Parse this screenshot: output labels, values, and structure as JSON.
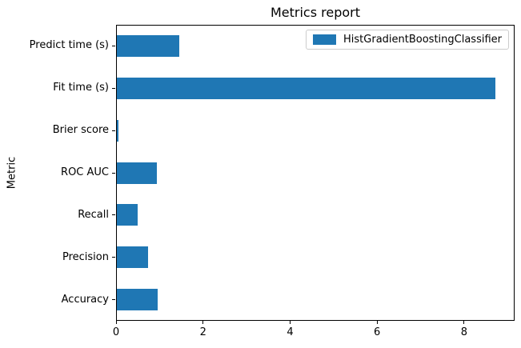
{
  "chart_data": {
    "type": "bar",
    "orientation": "horizontal",
    "title": "Metrics report",
    "xlabel": "",
    "ylabel": "Metric",
    "categories_top_to_bottom": [
      "Predict time (s)",
      "Fit time (s)",
      "Brier score",
      "ROC AUC",
      "Recall",
      "Precision",
      "Accuracy"
    ],
    "series": [
      {
        "name": "HistGradientBoostingClassifier",
        "color": "#1f77b4",
        "values_top_to_bottom": [
          1.43,
          8.7,
          0.04,
          0.92,
          0.48,
          0.72,
          0.94
        ]
      }
    ],
    "xticks": [
      0,
      2,
      4,
      6,
      8
    ],
    "xlim": [
      0,
      9.16
    ],
    "grid": false,
    "legend": {
      "position": "upper right",
      "frame": true,
      "entries": [
        "HistGradientBoostingClassifier"
      ]
    },
    "colors": {
      "bar": "#1f77b4",
      "spine": "#000000",
      "text": "#000000",
      "legend_border": "#cccccc",
      "background": "#ffffff"
    }
  }
}
